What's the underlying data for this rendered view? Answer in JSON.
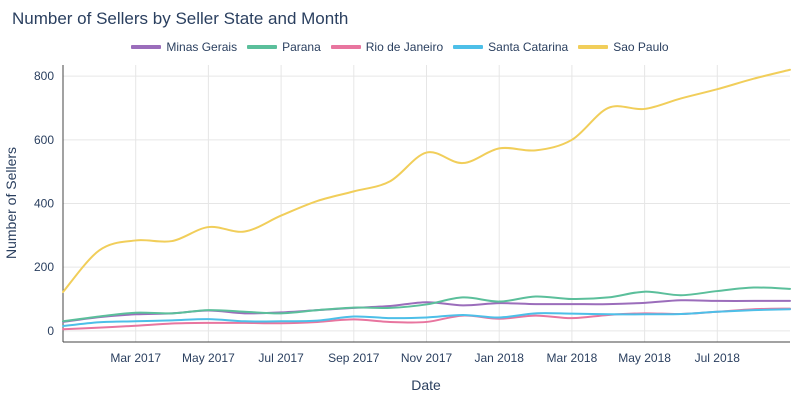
{
  "chart_data": {
    "type": "line",
    "title": "Number of Sellers by Seller State and Month",
    "xlabel": "Date",
    "ylabel": "Number of Sellers",
    "ylim": [
      -35,
      835
    ],
    "yticks": [
      0,
      200,
      400,
      600,
      800
    ],
    "x": [
      "2017-01",
      "2017-02",
      "2017-03",
      "2017-04",
      "2017-05",
      "2017-06",
      "2017-07",
      "2017-08",
      "2017-09",
      "2017-10",
      "2017-11",
      "2017-12",
      "2018-01",
      "2018-02",
      "2018-03",
      "2018-04",
      "2018-05",
      "2018-06",
      "2018-07",
      "2018-08",
      "2018-09"
    ],
    "xticks": [
      {
        "month": "2017-03",
        "label": "Mar 2017"
      },
      {
        "month": "2017-05",
        "label": "May 2017"
      },
      {
        "month": "2017-07",
        "label": "Jul 2017"
      },
      {
        "month": "2017-09",
        "label": "Sep 2017"
      },
      {
        "month": "2017-11",
        "label": "Nov 2017"
      },
      {
        "month": "2018-01",
        "label": "Jan 2018"
      },
      {
        "month": "2018-03",
        "label": "Mar 2018"
      },
      {
        "month": "2018-05",
        "label": "May 2018"
      },
      {
        "month": "2018-07",
        "label": "Jul 2018"
      }
    ],
    "series": [
      {
        "name": "Minas Gerais",
        "color": "#9b6dbb",
        "values": [
          28,
          43,
          52,
          55,
          64,
          55,
          58,
          65,
          72,
          78,
          90,
          80,
          87,
          84,
          84,
          84,
          88,
          96,
          94,
          94,
          94
        ]
      },
      {
        "name": "Parana",
        "color": "#5bbf9b",
        "values": [
          30,
          45,
          57,
          55,
          65,
          60,
          55,
          65,
          73,
          72,
          83,
          105,
          92,
          108,
          100,
          105,
          123,
          112,
          125,
          136,
          132
        ]
      },
      {
        "name": "Rio de Janeiro",
        "color": "#e8759f",
        "values": [
          5,
          10,
          16,
          23,
          25,
          25,
          24,
          28,
          36,
          28,
          28,
          48,
          38,
          48,
          40,
          50,
          55,
          53,
          60,
          68,
          70
        ]
      },
      {
        "name": "Santa Catarina",
        "color": "#4dbfe8",
        "values": [
          15,
          27,
          30,
          33,
          37,
          30,
          30,
          32,
          45,
          40,
          42,
          50,
          42,
          55,
          54,
          52,
          52,
          53,
          60,
          65,
          68
        ]
      },
      {
        "name": "Sao Paulo",
        "color": "#f1ce5a",
        "values": [
          122,
          253,
          284,
          282,
          326,
          312,
          362,
          408,
          438,
          470,
          560,
          527,
          573,
          567,
          600,
          700,
          697,
          730,
          759,
          792,
          820
        ]
      }
    ]
  }
}
